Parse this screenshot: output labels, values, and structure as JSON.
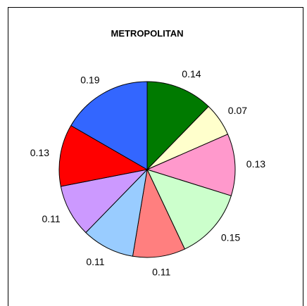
{
  "chart_data": {
    "type": "pie",
    "title": "METROPOLITAN",
    "slices": [
      {
        "label": "0.14",
        "value": 0.14,
        "color": "#007A00"
      },
      {
        "label": "0.07",
        "value": 0.07,
        "color": "#FFFFCC"
      },
      {
        "label": "0.13",
        "value": 0.13,
        "color": "#FF99CC"
      },
      {
        "label": "0.15",
        "value": 0.15,
        "color": "#CCFFCC"
      },
      {
        "label": "0.11",
        "value": 0.11,
        "color": "#FF7F7F"
      },
      {
        "label": "0.11",
        "value": 0.11,
        "color": "#99CCFF"
      },
      {
        "label": "0.11",
        "value": 0.11,
        "color": "#CC99FF"
      },
      {
        "label": "0.13",
        "value": 0.13,
        "color": "#FF0000"
      },
      {
        "label": "0.19",
        "value": 0.19,
        "color": "#3366FF"
      }
    ]
  }
}
